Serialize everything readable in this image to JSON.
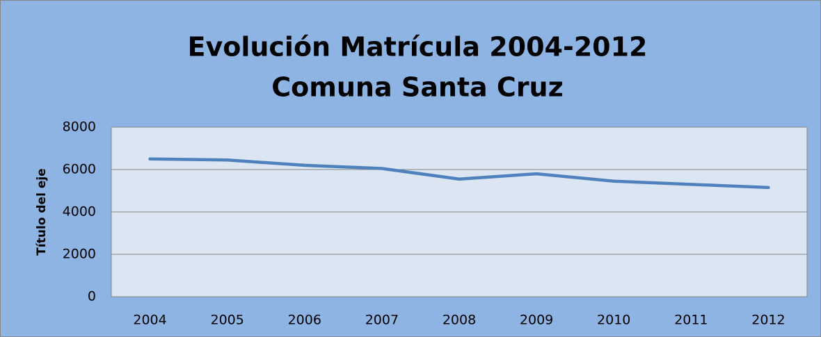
{
  "chart_data": {
    "type": "line",
    "title": [
      "Evolución Matrícula 2004-2012",
      "Comuna Santa Cruz"
    ],
    "y_axis_label": "Título del eje",
    "categories": [
      "2004",
      "2005",
      "2006",
      "2007",
      "2008",
      "2009",
      "2010",
      "2011",
      "2012"
    ],
    "values": [
      6500,
      6450,
      6200,
      6050,
      5550,
      5800,
      5450,
      5300,
      5150
    ],
    "color": "#4f81bd",
    "ylim": [
      0,
      8000
    ],
    "yticks": [
      0,
      2000,
      4000,
      6000,
      8000
    ],
    "grid": true
  }
}
